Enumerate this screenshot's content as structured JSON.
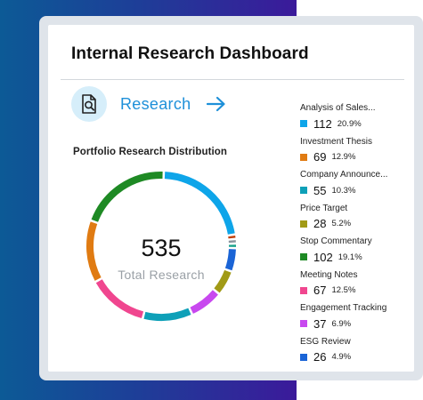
{
  "dashboard": {
    "title": "Internal Research Dashboard"
  },
  "research_link": {
    "label": "Research",
    "icon": "document-search-icon",
    "arrow_icon": "arrow-right-icon",
    "accent_color": "#1e90d9"
  },
  "distribution": {
    "title": "Portfolio Research Distribution",
    "total": "535",
    "total_label": "Total Research"
  },
  "chart_data": {
    "type": "pie",
    "title": "Portfolio Research Distribution",
    "total": 535,
    "series": [
      {
        "name": "Analysis of Sales...",
        "value": 112,
        "percent": "20.9%",
        "color": "#0ea5e9"
      },
      {
        "name": "Investment Thesis",
        "value": 69,
        "percent": "12.9%",
        "color": "#e07b12"
      },
      {
        "name": "Company Announce...",
        "value": 55,
        "percent": "10.3%",
        "color": "#0ea0b8"
      },
      {
        "name": "Price Target",
        "value": 28,
        "percent": "5.2%",
        "color": "#a19a16"
      },
      {
        "name": "Stop Commentary",
        "value": 102,
        "percent": "19.1%",
        "color": "#1e8a24"
      },
      {
        "name": "Meeting Notes",
        "value": 67,
        "percent": "12.5%",
        "color": "#f0468f"
      },
      {
        "name": "Engagement Tracking",
        "value": 37,
        "percent": "6.9%",
        "color": "#c848ef"
      },
      {
        "name": "ESG Review",
        "value": 26,
        "percent": "4.9%",
        "color": "#1a64d6"
      }
    ],
    "other_segments": [
      {
        "color": "#1aa38c"
      },
      {
        "color": "#8a949e"
      },
      {
        "color": "#c2410c"
      }
    ]
  }
}
